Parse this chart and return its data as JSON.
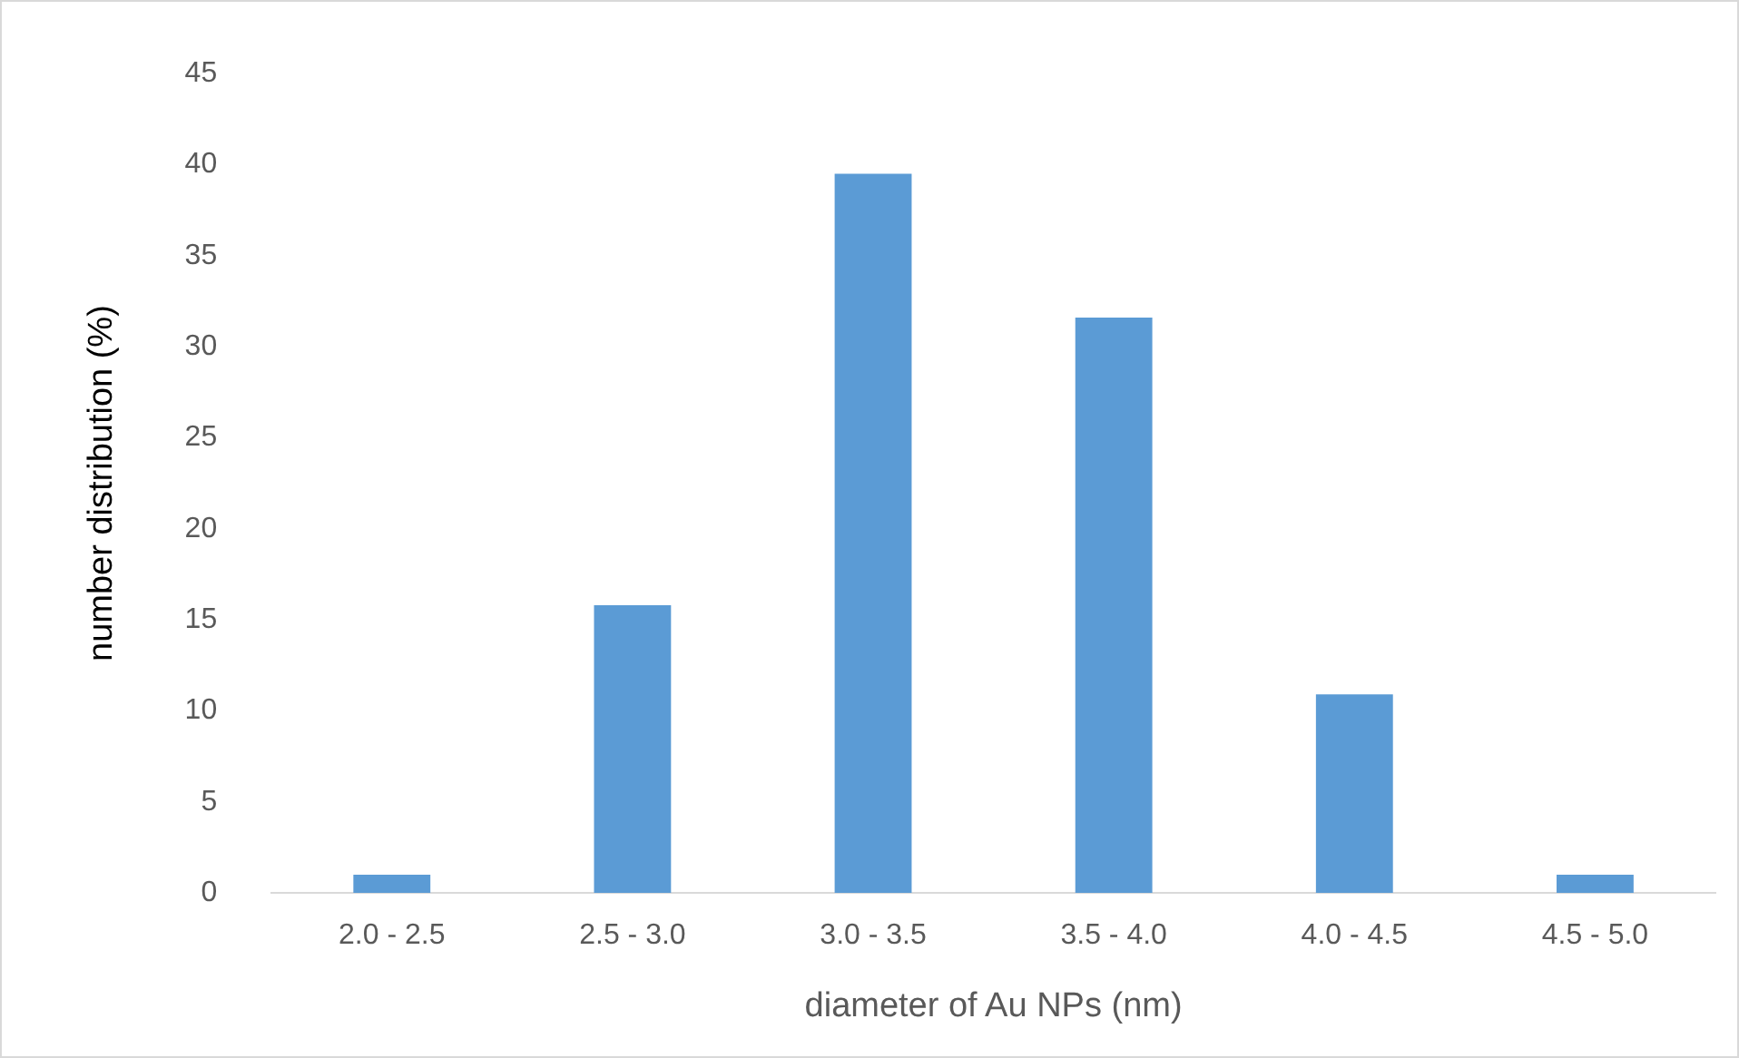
{
  "chart_data": {
    "type": "bar",
    "xlabel": "diameter of Au NPs (nm)",
    "ylabel": "number distribution (%)",
    "categories": [
      "2.0 - 2.5",
      "2.5 - 3.0",
      "3.0 - 3.5",
      "3.5 - 4.0",
      "4.0 - 4.5",
      "4.5 - 5.0"
    ],
    "values": [
      1,
      15.8,
      39.5,
      31.6,
      10.9,
      1
    ],
    "color": "#5b9bd5",
    "ylim": [
      0,
      45
    ],
    "yticks": [
      0,
      5,
      10,
      15,
      20,
      25,
      30,
      35,
      40,
      45
    ]
  }
}
